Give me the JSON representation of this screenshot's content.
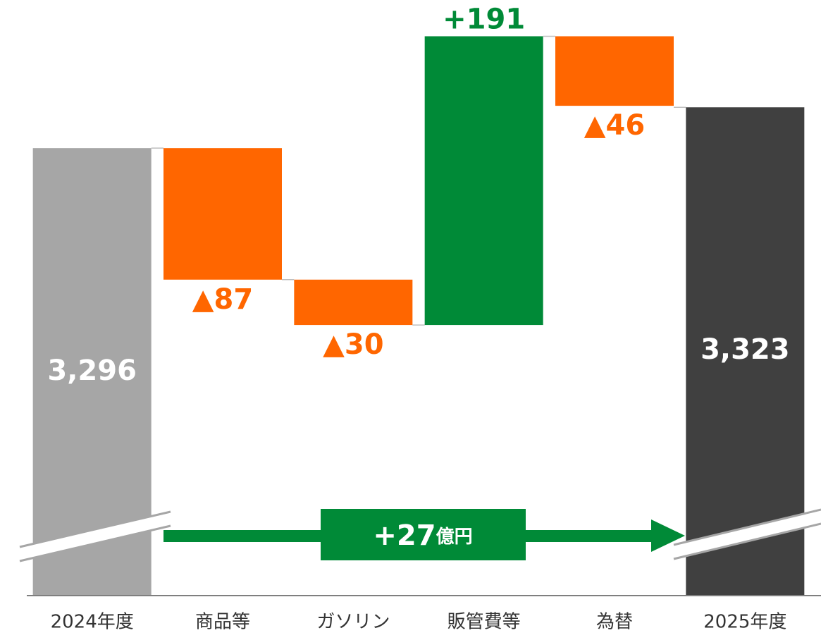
{
  "chart_data": {
    "type": "waterfall",
    "categories": [
      "2024年度",
      "商品等",
      "ガソリン",
      "販管費等",
      "為替",
      "2025年度"
    ],
    "values": [
      3296,
      -87,
      -30,
      191,
      -46,
      3323
    ],
    "value_labels": [
      "3,296",
      "▲87",
      "▲30",
      "+191",
      "▲46",
      "3,323"
    ],
    "total_indices": [
      0,
      5
    ],
    "colors": {
      "start": "#a6a6a6",
      "end": "#404040",
      "increase": "#008a37",
      "decrease": "#ff6600"
    },
    "ylim": [
      3000,
      3380
    ],
    "axis_break": true,
    "annotation": {
      "value": "+27",
      "unit": "億円",
      "color": "#008a37"
    }
  }
}
